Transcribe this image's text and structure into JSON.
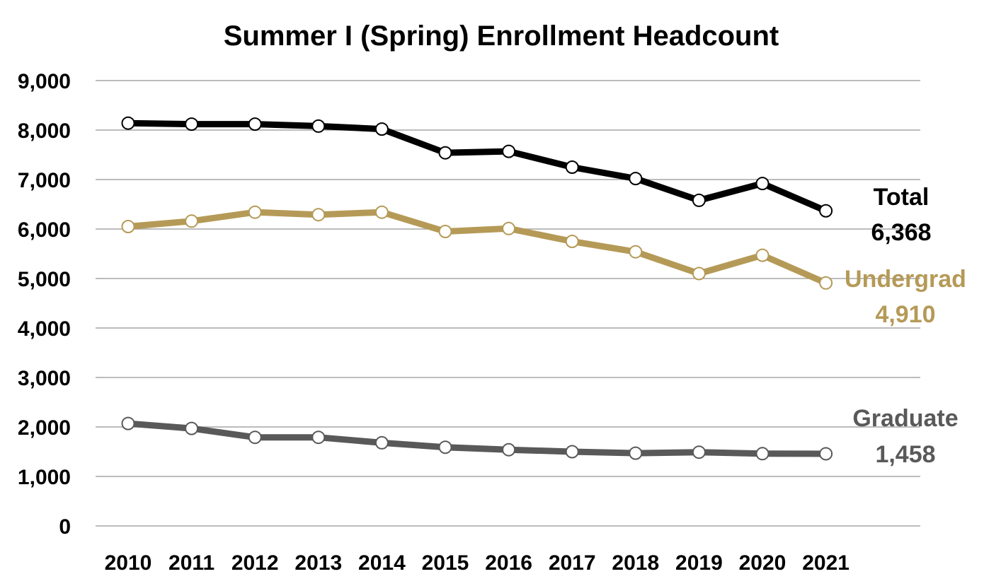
{
  "chart_data": {
    "type": "line",
    "title": "Summer I (Spring) Enrollment Headcount",
    "xlabel": "",
    "ylabel": "",
    "ylim": [
      0,
      9000
    ],
    "yticks": [
      "0",
      "1,000",
      "2,000",
      "3,000",
      "4,000",
      "5,000",
      "6,000",
      "7,000",
      "8,000",
      "9,000"
    ],
    "ytick_values": [
      0,
      1000,
      2000,
      3000,
      4000,
      5000,
      6000,
      7000,
      8000,
      9000
    ],
    "grid": true,
    "legend": "none",
    "categories": [
      "2010",
      "2011",
      "2012",
      "2013",
      "2014",
      "2015",
      "2016",
      "2017",
      "2018",
      "2019",
      "2020",
      "2021"
    ],
    "series": [
      {
        "key": "total",
        "name": "Total",
        "end_value_label": "6,368",
        "color": "#000000",
        "values": [
          8140,
          8120,
          8120,
          8080,
          8020,
          7540,
          7570,
          7250,
          7020,
          6580,
          6920,
          6368
        ]
      },
      {
        "key": "undergrad",
        "name": "Undergrad",
        "end_value_label": "4,910",
        "color": "#b59a57",
        "values": [
          6050,
          6160,
          6340,
          6290,
          6340,
          5950,
          6010,
          5750,
          5540,
          5100,
          5470,
          4910
        ]
      },
      {
        "key": "graduate",
        "name": "Graduate",
        "end_value_label": "1,458",
        "color": "#595959",
        "values": [
          2070,
          1970,
          1790,
          1790,
          1680,
          1590,
          1540,
          1500,
          1470,
          1490,
          1460,
          1458
        ]
      }
    ]
  }
}
